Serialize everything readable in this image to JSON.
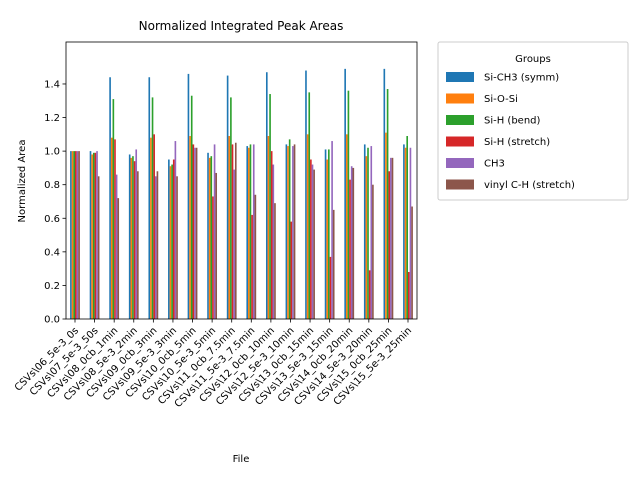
{
  "chart_data": {
    "type": "bar",
    "title": "Normalized Integrated Peak Areas",
    "xlabel": "File",
    "ylabel": "Normalized Area",
    "ylim": [
      0,
      1.65
    ],
    "yticks": [
      0.0,
      0.2,
      0.4,
      0.6,
      0.8,
      1.0,
      1.2,
      1.4
    ],
    "grid": false,
    "legend": {
      "title": "Groups",
      "placement": "outside-upper-right"
    },
    "categories": [
      "CSVs\\06_5e-3_0s",
      "CSVs\\07_5e-3_50s",
      "CSVs\\08_0cb_1min",
      "CSVs\\08_5e-3_2min",
      "CSVs\\09_0cb_3min",
      "CSVs\\09_5e-3_3min",
      "CSVs\\10_0cb_5min",
      "CSVs\\10_5e-3_5min",
      "CSVs\\11_0cb_7.5min",
      "CSVs\\11_5e-3_7.5min",
      "CSVs\\12_0cb_10min",
      "CSVs\\12_5e-3_10min",
      "CSVs\\13_0cb_15min",
      "CSVs\\13_5e-3_15min",
      "CSVs\\14_0cb_20min",
      "CSVs\\14_5e-3_20min",
      "CSVs\\15_0cb_25min",
      "CSVs\\15_5e-3_25min"
    ],
    "series": [
      {
        "name": "Si-CH3 (symm)",
        "color": "#1f77b4",
        "values": [
          1.0,
          1.0,
          1.44,
          0.98,
          1.44,
          0.95,
          1.46,
          0.99,
          1.45,
          1.03,
          1.47,
          1.04,
          1.48,
          1.01,
          1.49,
          1.04,
          1.49,
          1.04
        ]
      },
      {
        "name": "Si-O-Si",
        "color": "#ff7f0e",
        "values": [
          1.0,
          0.98,
          1.08,
          0.96,
          1.08,
          0.91,
          1.09,
          0.96,
          1.09,
          1.02,
          1.09,
          1.03,
          1.1,
          0.95,
          1.1,
          0.97,
          1.11,
          1.02
        ]
      },
      {
        "name": "Si-H (bend)",
        "color": "#2ca02c",
        "values": [
          1.0,
          0.99,
          1.31,
          0.97,
          1.32,
          0.92,
          1.33,
          0.97,
          1.32,
          1.04,
          1.34,
          1.07,
          1.35,
          1.01,
          1.36,
          1.02,
          1.37,
          1.09
        ]
      },
      {
        "name": "Si-H (stretch)",
        "color": "#d62728",
        "values": [
          1.0,
          0.99,
          1.07,
          0.94,
          1.1,
          0.95,
          1.04,
          0.73,
          1.04,
          0.62,
          1.0,
          0.58,
          0.95,
          0.37,
          0.83,
          0.29,
          0.88,
          0.28
        ]
      },
      {
        "name": "CH3",
        "color": "#9467bd",
        "values": [
          1.0,
          1.0,
          0.86,
          1.01,
          0.85,
          1.06,
          1.02,
          1.04,
          0.89,
          1.04,
          0.92,
          1.03,
          0.92,
          1.06,
          0.91,
          1.03,
          0.96,
          1.02
        ]
      },
      {
        "name": "vinyl C-H (stretch)",
        "color": "#8c564b",
        "values": [
          1.0,
          0.85,
          0.72,
          0.88,
          0.88,
          0.85,
          1.02,
          0.87,
          1.05,
          0.74,
          0.69,
          1.04,
          0.89,
          0.65,
          0.9,
          0.8,
          0.96,
          0.67
        ]
      }
    ]
  }
}
